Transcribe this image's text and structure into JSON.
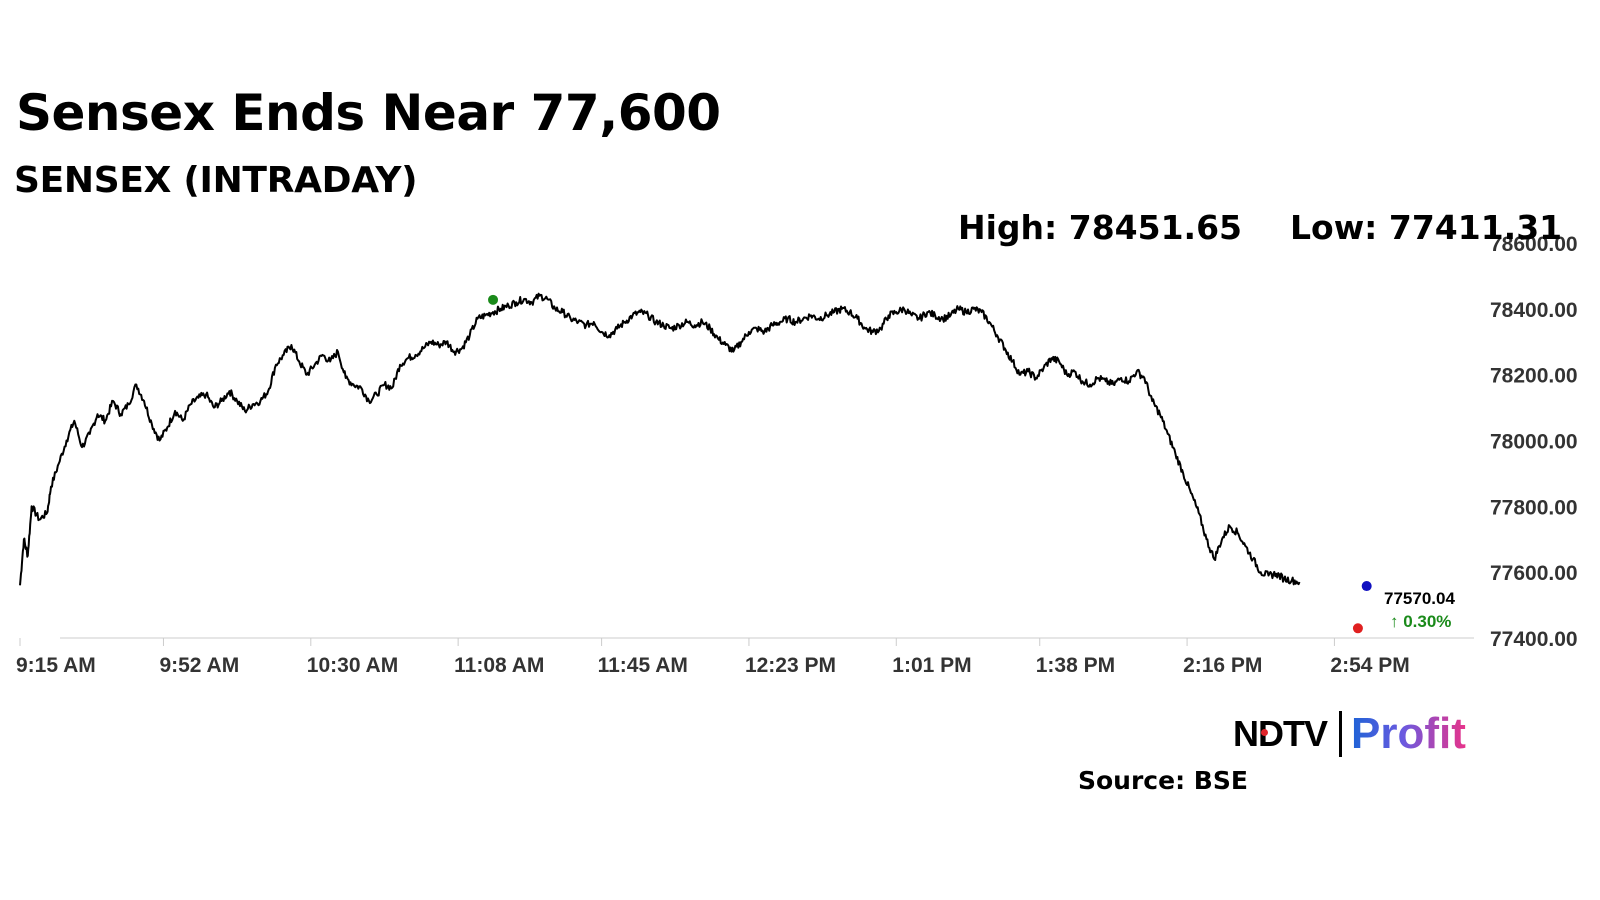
{
  "header": {
    "title": "Sensex Ends Near 77,600",
    "subtitle": "SENSEX (INTRADAY)",
    "high_text": "High: 78451.65",
    "low_text": "Low: 77411.31"
  },
  "footer": {
    "logo_ndtv": "NDTV",
    "logo_profit": "Profit",
    "source": "Source: BSE"
  },
  "colors": {
    "line": "#000000",
    "high_marker": "#1a8a1a",
    "low_marker": "#e02020",
    "last_marker": "#1010c0",
    "change_text": "#1a8a1a",
    "axis": "#cccccc"
  },
  "chart_data": {
    "type": "line",
    "ylim": [
      77400,
      78600
    ],
    "y_ticks": [
      "77400.00",
      "77600.00",
      "77800.00",
      "78000.00",
      "78200.00",
      "78400.00",
      "78600.00"
    ],
    "y_tick_values": [
      77400,
      77600,
      77800,
      78000,
      78200,
      78400,
      78600
    ],
    "x_ticks": [
      "9:15 AM",
      "9:52 AM",
      "10:30 AM",
      "11:08 AM",
      "11:45 AM",
      "12:23 PM",
      "1:01 PM",
      "1:38 PM",
      "2:16 PM",
      "2:54 PM"
    ],
    "x_tick_minutes": [
      555,
      592,
      630,
      668,
      705,
      743,
      781,
      818,
      856,
      894
    ],
    "x_range_minutes": [
      555,
      930
    ],
    "series": [
      {
        "points": [
          [
            555,
            77560
          ],
          [
            556,
            77700
          ],
          [
            557,
            77650
          ],
          [
            558,
            77800
          ],
          [
            560,
            77760
          ],
          [
            562,
            77780
          ],
          [
            563,
            77860
          ],
          [
            565,
            77930
          ],
          [
            567,
            78000
          ],
          [
            569,
            78060
          ],
          [
            571,
            77980
          ],
          [
            573,
            78020
          ],
          [
            575,
            78080
          ],
          [
            577,
            78060
          ],
          [
            579,
            78120
          ],
          [
            581,
            78080
          ],
          [
            583,
            78110
          ],
          [
            585,
            78170
          ],
          [
            587,
            78120
          ],
          [
            589,
            78050
          ],
          [
            591,
            78000
          ],
          [
            593,
            78040
          ],
          [
            595,
            78090
          ],
          [
            597,
            78060
          ],
          [
            599,
            78110
          ],
          [
            601,
            78130
          ],
          [
            603,
            78140
          ],
          [
            605,
            78100
          ],
          [
            607,
            78120
          ],
          [
            609,
            78150
          ],
          [
            611,
            78120
          ],
          [
            613,
            78090
          ],
          [
            615,
            78110
          ],
          [
            617,
            78120
          ],
          [
            619,
            78150
          ],
          [
            621,
            78230
          ],
          [
            623,
            78260
          ],
          [
            625,
            78290
          ],
          [
            627,
            78240
          ],
          [
            629,
            78200
          ],
          [
            631,
            78230
          ],
          [
            633,
            78260
          ],
          [
            635,
            78240
          ],
          [
            637,
            78270
          ],
          [
            639,
            78190
          ],
          [
            641,
            78170
          ],
          [
            643,
            78160
          ],
          [
            645,
            78120
          ],
          [
            647,
            78140
          ],
          [
            649,
            78170
          ],
          [
            651,
            78160
          ],
          [
            653,
            78230
          ],
          [
            655,
            78250
          ],
          [
            657,
            78260
          ],
          [
            659,
            78280
          ],
          [
            661,
            78300
          ],
          [
            663,
            78290
          ],
          [
            665,
            78300
          ],
          [
            667,
            78270
          ],
          [
            669,
            78280
          ],
          [
            671,
            78320
          ],
          [
            673,
            78370
          ],
          [
            675,
            78380
          ],
          [
            677,
            78390
          ],
          [
            679,
            78400
          ],
          [
            681,
            78410
          ],
          [
            683,
            78420
          ],
          [
            685,
            78430
          ],
          [
            687,
            78420
          ],
          [
            689,
            78440
          ],
          [
            691,
            78430
          ],
          [
            693,
            78400
          ],
          [
            695,
            78390
          ],
          [
            697,
            78370
          ],
          [
            699,
            78360
          ],
          [
            701,
            78350
          ],
          [
            703,
            78360
          ],
          [
            705,
            78330
          ],
          [
            707,
            78320
          ],
          [
            709,
            78340
          ],
          [
            711,
            78360
          ],
          [
            713,
            78380
          ],
          [
            715,
            78390
          ],
          [
            717,
            78380
          ],
          [
            719,
            78360
          ],
          [
            721,
            78350
          ],
          [
            723,
            78340
          ],
          [
            725,
            78350
          ],
          [
            727,
            78360
          ],
          [
            729,
            78350
          ],
          [
            731,
            78360
          ],
          [
            733,
            78340
          ],
          [
            735,
            78310
          ],
          [
            737,
            78290
          ],
          [
            739,
            78270
          ],
          [
            741,
            78300
          ],
          [
            743,
            78330
          ],
          [
            745,
            78340
          ],
          [
            747,
            78330
          ],
          [
            749,
            78350
          ],
          [
            751,
            78360
          ],
          [
            753,
            78370
          ],
          [
            755,
            78360
          ],
          [
            757,
            78370
          ],
          [
            759,
            78380
          ],
          [
            761,
            78370
          ],
          [
            763,
            78380
          ],
          [
            765,
            78390
          ],
          [
            767,
            78400
          ],
          [
            769,
            78390
          ],
          [
            771,
            78370
          ],
          [
            773,
            78340
          ],
          [
            775,
            78330
          ],
          [
            777,
            78340
          ],
          [
            779,
            78380
          ],
          [
            781,
            78390
          ],
          [
            783,
            78400
          ],
          [
            785,
            78380
          ],
          [
            787,
            78370
          ],
          [
            789,
            78390
          ],
          [
            791,
            78380
          ],
          [
            793,
            78370
          ],
          [
            795,
            78380
          ],
          [
            797,
            78400
          ],
          [
            799,
            78390
          ],
          [
            801,
            78400
          ],
          [
            803,
            78390
          ],
          [
            805,
            78360
          ],
          [
            807,
            78320
          ],
          [
            809,
            78280
          ],
          [
            811,
            78240
          ],
          [
            813,
            78200
          ],
          [
            815,
            78210
          ],
          [
            817,
            78190
          ],
          [
            819,
            78220
          ],
          [
            821,
            78250
          ],
          [
            823,
            78240
          ],
          [
            825,
            78200
          ],
          [
            827,
            78210
          ],
          [
            829,
            78180
          ],
          [
            831,
            78170
          ],
          [
            833,
            78190
          ],
          [
            835,
            78180
          ],
          [
            837,
            78170
          ],
          [
            839,
            78190
          ],
          [
            841,
            78180
          ],
          [
            843,
            78210
          ],
          [
            845,
            78190
          ],
          [
            847,
            78120
          ],
          [
            849,
            78080
          ],
          [
            851,
            78020
          ],
          [
            853,
            77960
          ],
          [
            855,
            77900
          ],
          [
            857,
            77840
          ],
          [
            859,
            77780
          ],
          [
            861,
            77700
          ],
          [
            863,
            77640
          ],
          [
            865,
            77700
          ],
          [
            867,
            77740
          ],
          [
            869,
            77720
          ],
          [
            871,
            77680
          ],
          [
            873,
            77640
          ],
          [
            875,
            77600
          ],
          [
            877,
            77590
          ],
          [
            879,
            77595
          ],
          [
            881,
            77580
          ],
          [
            883,
            77575
          ],
          [
            885,
            77570
          ]
        ]
      }
    ],
    "high": {
      "minute": 677,
      "value": 78451.65
    },
    "low": {
      "minute": 898,
      "value": 77411.31
    },
    "last": {
      "minute": 900,
      "value": 77570.04,
      "label": "77570.04"
    },
    "change_label": "↑ 0.30%"
  }
}
